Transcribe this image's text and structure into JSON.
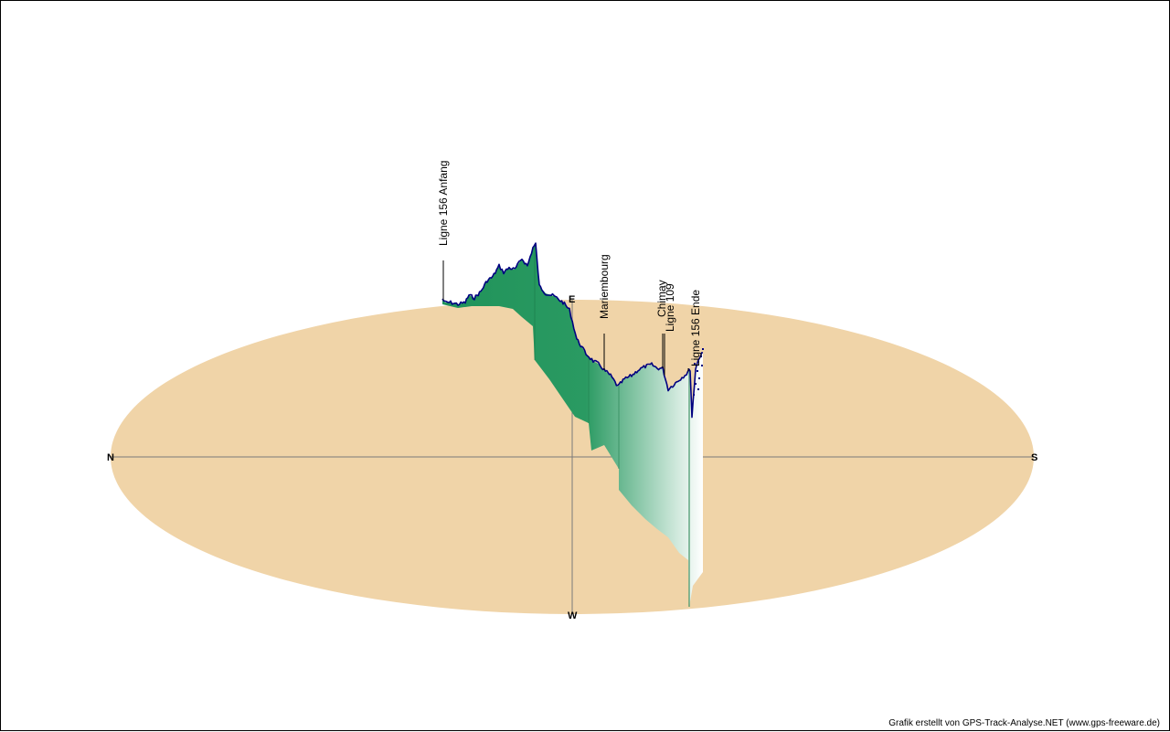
{
  "chart_data": {
    "type": "area",
    "directions": {
      "north": "N",
      "south": "S",
      "east": "E",
      "west": "W"
    },
    "waypoints": [
      {
        "name": "Ligne 156 Anfang",
        "t": 0.0
      },
      {
        "name": "Mariembourg",
        "t": 0.63
      },
      {
        "name": "Ligne 109",
        "t": 0.83
      },
      {
        "name": "Chimay",
        "t": 0.83
      },
      {
        "name": "Ligne 156 Ende",
        "t": 0.98
      }
    ],
    "colors": {
      "ground": "#f0d4a8",
      "profile_line": "#000080",
      "fill_dark": "#20935a",
      "fill_light": "#ffffff",
      "axis": "#7a7a7a"
    }
  },
  "footer": {
    "credit": "Grafik erstellt von GPS-Track-Analyse.NET (www.gps-freeware.de)"
  }
}
